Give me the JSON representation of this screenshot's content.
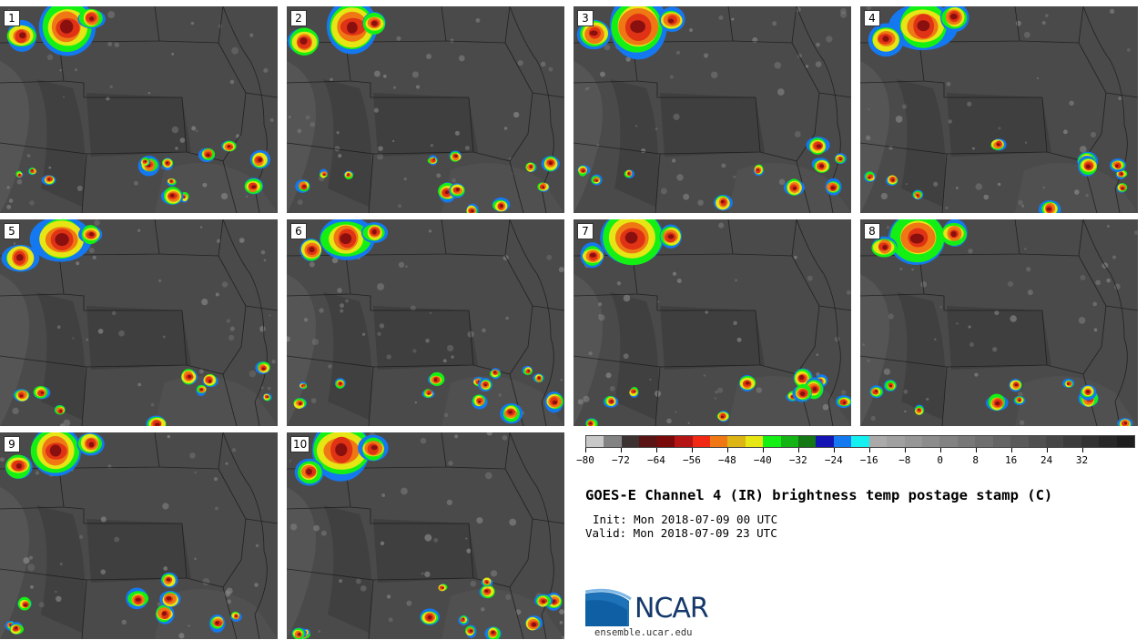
{
  "panels": [
    {
      "label": "1"
    },
    {
      "label": "2"
    },
    {
      "label": "3"
    },
    {
      "label": "4"
    },
    {
      "label": "5"
    },
    {
      "label": "6"
    },
    {
      "label": "7"
    },
    {
      "label": "8"
    },
    {
      "label": "9"
    },
    {
      "label": "10"
    }
  ],
  "title": "GOES-E Channel 4 (IR) brightness temp postage stamp (C)",
  "init": "Init: Mon 2018-07-09 00 UTC",
  "valid": "Valid: Mon 2018-07-09 23 UTC",
  "logo": {
    "text": "NCAR",
    "site": "ensemble.ucar.edu"
  },
  "colorbar": {
    "min": -80,
    "max": 44,
    "step": 4,
    "tick_labels": [
      "−80",
      "−72",
      "−64",
      "−56",
      "−48",
      "−40",
      "−32",
      "−24",
      "−16",
      "−8",
      "0",
      "8",
      "16",
      "24",
      "32"
    ],
    "tick_values": [
      -80,
      -72,
      -64,
      -56,
      -48,
      -40,
      -32,
      -24,
      -16,
      -8,
      0,
      8,
      16,
      24,
      32
    ],
    "colors": [
      "#c8c8c8",
      "#828282",
      "#3c3232",
      "#5a1414",
      "#7a0a0a",
      "#b41414",
      "#f02814",
      "#f07814",
      "#dcb414",
      "#e6e614",
      "#14f014",
      "#14b414",
      "#147814",
      "#1414b4",
      "#1478f0",
      "#14f0f0",
      "#aaaaaa",
      "#a0a0a0",
      "#969696",
      "#8c8c8c",
      "#828282",
      "#787878",
      "#6e6e6e",
      "#646464",
      "#5a5a5a",
      "#505050",
      "#464646",
      "#3c3c3c",
      "#323232",
      "#282828",
      "#1e1e1e"
    ]
  }
}
